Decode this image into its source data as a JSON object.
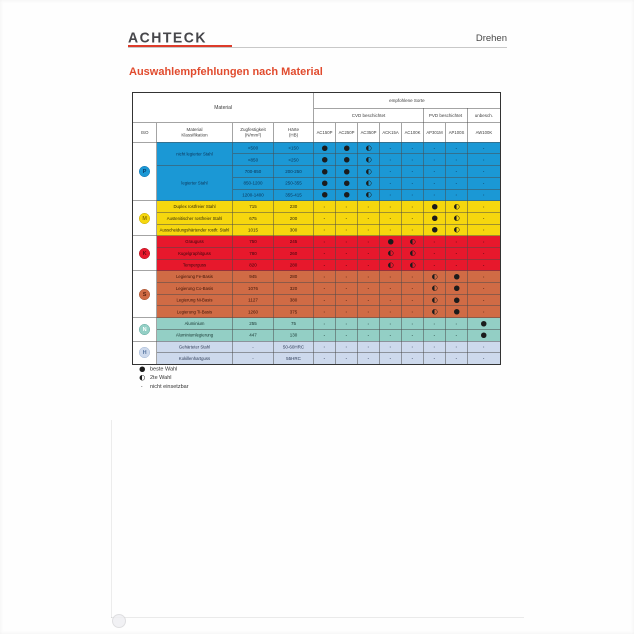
{
  "page": {
    "brand": "ACHTECK",
    "section": "Drehen",
    "title": "Auswahlempfehlungen nach Material"
  },
  "table": {
    "header": {
      "material": "Material",
      "empfohlene": "empfohlene Sorte",
      "coating_groups": [
        {
          "label": "CVD beschichtet",
          "span": 5
        },
        {
          "label": "PVD beschichtet",
          "span": 2
        },
        {
          "label": "unbesch.",
          "span": 1
        }
      ],
      "columns": [
        "ISO",
        "Material\nKlassifikation",
        "Zugfestigkeit\n(N/mm²)",
        "Härte\n(HB)"
      ],
      "grades": [
        "AC150P",
        "AC250P",
        "AC350P",
        "ACK15A",
        "AC100K",
        "AP301M",
        "AP100S",
        "AW100K"
      ]
    },
    "groups": [
      {
        "iso": "P",
        "colors": {
          "row": "#1b98d5",
          "text": "#0d3355",
          "circle_bg": "#1b98d5",
          "circle_border": "#0d6fae",
          "circle_text": "#0a3c69"
        },
        "materials": [
          {
            "label": "nicht legierter Stahl",
            "span": 2
          },
          {
            "label": "legierter Stahl",
            "span": 3
          }
        ],
        "rows": [
          {
            "tensile": "<500",
            "hardness": "<150",
            "ratings": [
              "best",
              "best",
              "second",
              "none",
              "none",
              "none",
              "none",
              "none"
            ]
          },
          {
            "tensile": "<850",
            "hardness": "<250",
            "ratings": [
              "best",
              "best",
              "second",
              "none",
              "none",
              "none",
              "none",
              "none"
            ]
          },
          {
            "tensile": "700-850",
            "hardness": "200-250",
            "ratings": [
              "best",
              "best",
              "second",
              "none",
              "none",
              "none",
              "none",
              "none"
            ]
          },
          {
            "tensile": "850-1200",
            "hardness": "250-355",
            "ratings": [
              "best",
              "best",
              "second",
              "none",
              "none",
              "none",
              "none",
              "none"
            ]
          },
          {
            "tensile": "1200-1400",
            "hardness": "355-415",
            "ratings": [
              "best",
              "best",
              "second",
              "none",
              "none",
              "none",
              "none",
              "none"
            ]
          }
        ]
      },
      {
        "iso": "M",
        "colors": {
          "row": "#f6d70e",
          "text": "#33290a",
          "circle_bg": "#f6d70e",
          "circle_border": "#c2a800",
          "circle_text": "#8f7600"
        },
        "materials": [
          {
            "label": "Duplex rostfreier Stahl",
            "span": 1
          },
          {
            "label": "Austenitischer rostfreier Stahl",
            "span": 1
          },
          {
            "label": "Ausscheidungshärtender rostfr. Stahl",
            "span": 1
          }
        ],
        "rows": [
          {
            "tensile": "715",
            "hardness": "230",
            "ratings": [
              "none",
              "none",
              "none",
              "none",
              "none",
              "best",
              "second",
              "none"
            ]
          },
          {
            "tensile": "675",
            "hardness": "200",
            "ratings": [
              "none",
              "none",
              "none",
              "none",
              "none",
              "best",
              "second",
              "none"
            ]
          },
          {
            "tensile": "1015",
            "hardness": "300",
            "ratings": [
              "none",
              "none",
              "none",
              "none",
              "none",
              "best",
              "second",
              "none"
            ]
          }
        ]
      },
      {
        "iso": "K",
        "colors": {
          "row": "#e7182c",
          "text": "#38070d",
          "circle_bg": "#e7182c",
          "circle_border": "#a80e1c",
          "circle_text": "#6d0a12"
        },
        "materials": [
          {
            "label": "Grauguss",
            "span": 1
          },
          {
            "label": "Kugelgraphitguss",
            "span": 1
          },
          {
            "label": "Temperguss",
            "span": 1
          }
        ],
        "rows": [
          {
            "tensile": "750",
            "hardness": "245",
            "ratings": [
              "none",
              "none",
              "none",
              "best",
              "second",
              "none",
              "none",
              "none"
            ]
          },
          {
            "tensile": "780",
            "hardness": "260",
            "ratings": [
              "none",
              "none",
              "none",
              "second",
              "second",
              "none",
              "none",
              "none"
            ]
          },
          {
            "tensile": "820",
            "hardness": "280",
            "ratings": [
              "none",
              "none",
              "none",
              "second",
              "second",
              "none",
              "none",
              "none"
            ]
          }
        ]
      },
      {
        "iso": "S",
        "colors": {
          "row": "#d06b45",
          "text": "#3c1407",
          "circle_bg": "#d06b45",
          "circle_border": "#9c4a28",
          "circle_text": "#5f2512"
        },
        "materials": [
          {
            "label": "Legierung Fe-Basis",
            "span": 1
          },
          {
            "label": "Legierung Co-Basis",
            "span": 1
          },
          {
            "label": "Legierung Ni-Basis",
            "span": 1
          },
          {
            "label": "Legierung Ti-Basis",
            "span": 1
          }
        ],
        "rows": [
          {
            "tensile": "945",
            "hardness": "280",
            "ratings": [
              "none",
              "none",
              "none",
              "none",
              "none",
              "second",
              "best",
              "none"
            ]
          },
          {
            "tensile": "1076",
            "hardness": "320",
            "ratings": [
              "none",
              "none",
              "none",
              "none",
              "none",
              "second",
              "best",
              "none"
            ]
          },
          {
            "tensile": "1127",
            "hardness": "380",
            "ratings": [
              "none",
              "none",
              "none",
              "none",
              "none",
              "second",
              "best",
              "none"
            ]
          },
          {
            "tensile": "1260",
            "hardness": "375",
            "ratings": [
              "none",
              "none",
              "none",
              "none",
              "none",
              "second",
              "best",
              "none"
            ]
          }
        ]
      },
      {
        "iso": "N",
        "colors": {
          "row": "#93cfc5",
          "text": "#16332e",
          "circle_bg": "#93cfc5",
          "circle_border": "#5fa89d",
          "circle_text": "#ffffff"
        },
        "materials": [
          {
            "label": "Aluminium",
            "span": 1
          },
          {
            "label": "Aluminiumlegierung",
            "span": 1
          }
        ],
        "rows": [
          {
            "tensile": "255",
            "hardness": "75",
            "ratings": [
              "none",
              "none",
              "none",
              "none",
              "none",
              "none",
              "none",
              "best"
            ]
          },
          {
            "tensile": "447",
            "hardness": "130",
            "ratings": [
              "none",
              "none",
              "none",
              "none",
              "none",
              "none",
              "none",
              "best"
            ]
          }
        ]
      },
      {
        "iso": "H",
        "colors": {
          "row": "#cdd9ec",
          "text": "#2c3a55",
          "circle_bg": "#cdd9ec",
          "circle_border": "#9fb4d4",
          "circle_text": "#5a78a2"
        },
        "materials": [
          {
            "label": "Gehärteter Stahl",
            "span": 1
          },
          {
            "label": "Kokillenhartguss",
            "span": 1
          }
        ],
        "rows": [
          {
            "tensile": "-",
            "hardness": "50-60HRC",
            "ratings": [
              "none",
              "none",
              "none",
              "none",
              "none",
              "none",
              "none",
              "none"
            ]
          },
          {
            "tensile": "-",
            "hardness": "55HRC",
            "ratings": [
              "none",
              "none",
              "none",
              "none",
              "none",
              "none",
              "none",
              "none"
            ]
          }
        ]
      }
    ]
  },
  "legend": [
    {
      "id": "best",
      "label": "beste Wahl"
    },
    {
      "id": "second",
      "label": "2te Wahl"
    },
    {
      "id": "none",
      "label": "nicht einsetzbar"
    }
  ]
}
